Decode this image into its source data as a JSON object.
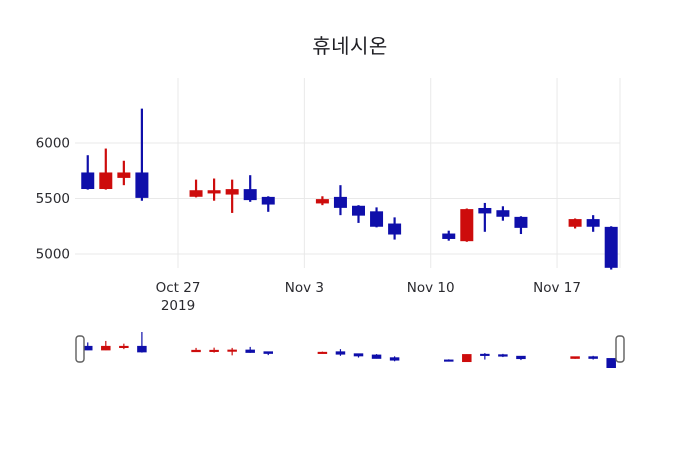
{
  "figure": {
    "title": "휴네시온",
    "colors": {
      "increasing": "#cd0c0c",
      "decreasing": "#0f0faa",
      "grid": "#e9e9e9",
      "axis_text": "#2a2a2f",
      "handle_border": "#5f5f5f",
      "handle_fill": "#ffffff",
      "background": "#ffffff"
    }
  },
  "chart_data": {
    "type": "candlestick",
    "title": "휴네시온",
    "xlabel": "",
    "ylabel": "",
    "grid": true,
    "rangeslider": true,
    "y_ticks": [
      {
        "value": 5000,
        "label": "5000"
      },
      {
        "value": 5500,
        "label": "5500"
      },
      {
        "value": 6000,
        "label": "6000"
      }
    ],
    "y_range_approx": [
      4770,
      6400
    ],
    "x_tick_labels": [
      {
        "date": "2019-10-27",
        "label": "Oct 27",
        "year": "2019"
      },
      {
        "date": "2019-11-03",
        "label": "Nov 3",
        "year": ""
      },
      {
        "date": "2019-11-10",
        "label": "Nov 10",
        "year": ""
      },
      {
        "date": "2019-11-17",
        "label": "Nov 17",
        "year": ""
      }
    ],
    "series": [
      {
        "date": "2019-10-22",
        "open": 5730,
        "high": 5890,
        "low": 5580,
        "close": 5590
      },
      {
        "date": "2019-10-23",
        "open": 5590,
        "high": 5950,
        "low": 5580,
        "close": 5730
      },
      {
        "date": "2019-10-24",
        "open": 5690,
        "high": 5840,
        "low": 5620,
        "close": 5730
      },
      {
        "date": "2019-10-25",
        "open": 5730,
        "high": 6310,
        "low": 5480,
        "close": 5510
      },
      {
        "date": "2019-10-28",
        "open": 5520,
        "high": 5670,
        "low": 5510,
        "close": 5570
      },
      {
        "date": "2019-10-29",
        "open": 5550,
        "high": 5680,
        "low": 5480,
        "close": 5570
      },
      {
        "date": "2019-10-30",
        "open": 5540,
        "high": 5670,
        "low": 5370,
        "close": 5580
      },
      {
        "date": "2019-10-31",
        "open": 5580,
        "high": 5710,
        "low": 5470,
        "close": 5490
      },
      {
        "date": "2019-11-01",
        "open": 5510,
        "high": 5520,
        "low": 5380,
        "close": 5450
      },
      {
        "date": "2019-11-04",
        "open": 5460,
        "high": 5520,
        "low": 5440,
        "close": 5490
      },
      {
        "date": "2019-11-05",
        "open": 5510,
        "high": 5620,
        "low": 5350,
        "close": 5420
      },
      {
        "date": "2019-11-06",
        "open": 5430,
        "high": 5440,
        "low": 5280,
        "close": 5350
      },
      {
        "date": "2019-11-07",
        "open": 5380,
        "high": 5420,
        "low": 5240,
        "close": 5250
      },
      {
        "date": "2019-11-08",
        "open": 5270,
        "high": 5330,
        "low": 5130,
        "close": 5180
      },
      {
        "date": "2019-11-11",
        "open": 5180,
        "high": 5210,
        "low": 5120,
        "close": 5140
      },
      {
        "date": "2019-11-12",
        "open": 5120,
        "high": 5410,
        "low": 5110,
        "close": 5400
      },
      {
        "date": "2019-11-13",
        "open": 5410,
        "high": 5460,
        "low": 5200,
        "close": 5370
      },
      {
        "date": "2019-11-14",
        "open": 5390,
        "high": 5430,
        "low": 5300,
        "close": 5340
      },
      {
        "date": "2019-11-15",
        "open": 5330,
        "high": 5340,
        "low": 5180,
        "close": 5240
      },
      {
        "date": "2019-11-18",
        "open": 5250,
        "high": 5320,
        "low": 5230,
        "close": 5310
      },
      {
        "date": "2019-11-19",
        "open": 5310,
        "high": 5350,
        "low": 5200,
        "close": 5250
      },
      {
        "date": "2019-11-20",
        "open": 5240,
        "high": 5250,
        "low": 4860,
        "close": 4880
      }
    ]
  }
}
